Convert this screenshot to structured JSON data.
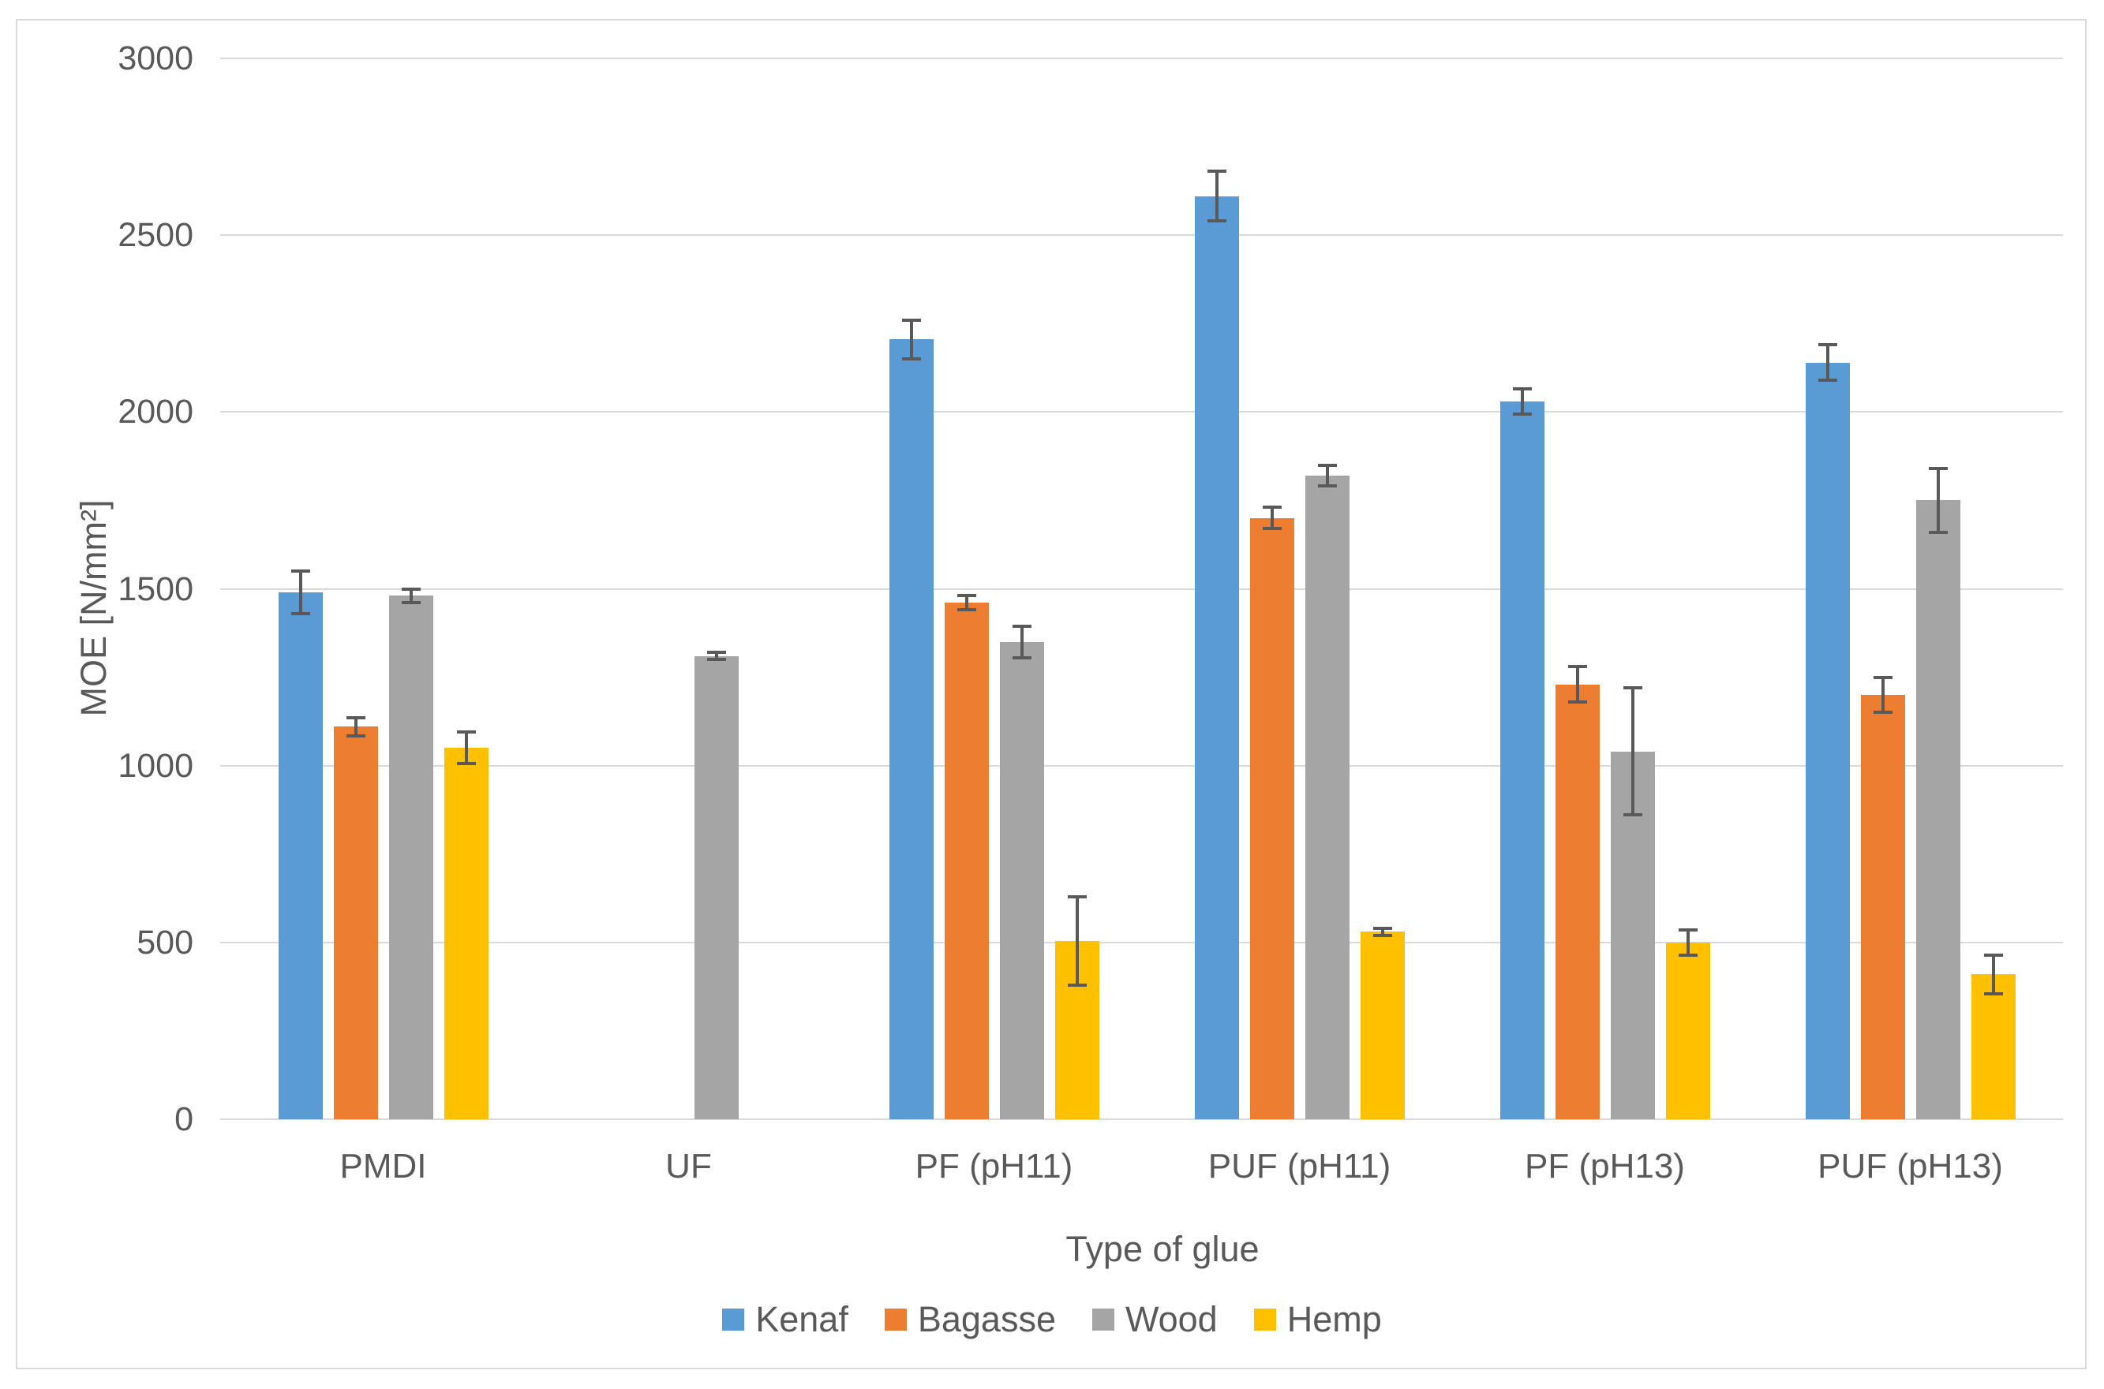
{
  "chart_data": {
    "type": "bar",
    "title": "",
    "xlabel": "Type of glue",
    "ylabel": "MOE [N/mm²]",
    "ylim": [
      0,
      3000
    ],
    "yticks": [
      0,
      500,
      1000,
      1500,
      2000,
      2500,
      3000
    ],
    "grid": true,
    "legend_position": "bottom",
    "categories": [
      "PMDI",
      "UF",
      "PF (pH11)",
      "PUF (pH11)",
      "PF (pH13)",
      "PUF (pH13)"
    ],
    "series": [
      {
        "name": "Kenaf",
        "color": "#5B9BD5",
        "values": [
          1490,
          null,
          2205,
          2610,
          2030,
          2140
        ],
        "errors": [
          60,
          null,
          55,
          70,
          35,
          50
        ]
      },
      {
        "name": "Bagasse",
        "color": "#ED7D31",
        "values": [
          1110,
          null,
          1460,
          1700,
          1230,
          1200
        ],
        "errors": [
          25,
          null,
          20,
          30,
          50,
          50
        ]
      },
      {
        "name": "Wood",
        "color": "#A5A5A5",
        "values": [
          1480,
          1310,
          1350,
          1820,
          1040,
          1750
        ],
        "errors": [
          20,
          10,
          45,
          30,
          180,
          90
        ]
      },
      {
        "name": "Hemp",
        "color": "#FFC000",
        "values": [
          1050,
          null,
          505,
          530,
          500,
          410
        ],
        "errors": [
          45,
          null,
          125,
          10,
          35,
          55
        ]
      }
    ]
  },
  "style_colors": {
    "gridline": "#D9D9D9",
    "axis_line": "#D9D9D9",
    "frame_border": "#D9D9D9",
    "error_bar": "#595959",
    "text": "#595959"
  }
}
